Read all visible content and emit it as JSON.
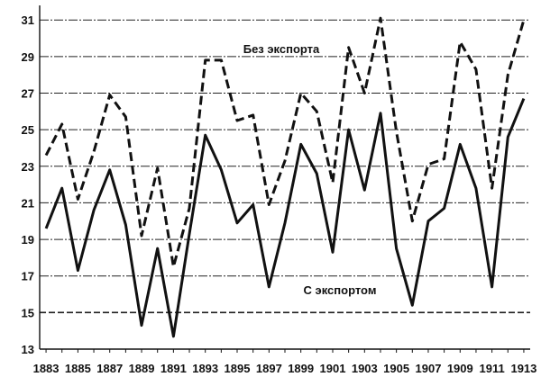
{
  "chart_data": {
    "type": "line",
    "title": "",
    "xlabel": "",
    "ylabel": "",
    "x": [
      1883,
      1884,
      1885,
      1886,
      1887,
      1888,
      1889,
      1890,
      1891,
      1892,
      1893,
      1894,
      1895,
      1896,
      1897,
      1898,
      1899,
      1900,
      1901,
      1902,
      1903,
      1904,
      1905,
      1906,
      1907,
      1908,
      1909,
      1910,
      1911,
      1912,
      1913
    ],
    "x_tick_labels": [
      "1883",
      "1885",
      "1887",
      "1889",
      "1891",
      "1893",
      "1895",
      "1897",
      "1899",
      "1901",
      "1903",
      "1905",
      "1907",
      "1909",
      "1911",
      "1913"
    ],
    "y_ticks": [
      13,
      15,
      17,
      19,
      21,
      23,
      25,
      27,
      29,
      31
    ],
    "ylim": [
      13,
      31.6
    ],
    "xlim": [
      1882.6,
      1913.4
    ],
    "grid": true,
    "legend": "inline labels",
    "series": [
      {
        "name": "Без экспорта",
        "style": "dashed",
        "color": "#111111",
        "values": [
          23.6,
          25.3,
          21.2,
          23.8,
          26.9,
          25.7,
          19.2,
          22.9,
          17.5,
          20.7,
          28.8,
          28.8,
          25.5,
          25.8,
          20.9,
          23.3,
          27.0,
          26.0,
          22.1,
          29.5,
          27.0,
          31.1,
          24.9,
          20.0,
          23.1,
          23.4,
          29.8,
          28.3,
          21.8,
          28.0,
          31.0
        ]
      },
      {
        "name": "С экспортом",
        "style": "solid",
        "color": "#111111",
        "values": [
          19.6,
          21.8,
          17.3,
          20.6,
          22.8,
          19.8,
          14.3,
          18.5,
          13.7,
          19.3,
          24.7,
          22.8,
          19.9,
          20.9,
          16.4,
          19.9,
          24.2,
          22.6,
          18.3,
          25.0,
          21.7,
          25.9,
          18.5,
          15.4,
          20.0,
          20.7,
          24.2,
          21.8,
          16.4,
          24.6,
          26.7
        ]
      }
    ]
  }
}
